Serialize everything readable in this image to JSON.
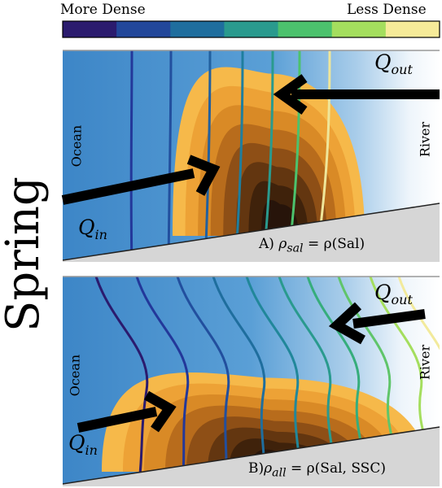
{
  "colorbar": {
    "left_label": "More Dense",
    "right_label": "Less Dense",
    "colors": [
      "#2b1b6e",
      "#22479a",
      "#1f6e9e",
      "#2a9a8e",
      "#4cc26d",
      "#a4de5e",
      "#f6eb99"
    ]
  },
  "season_label": "Spring",
  "panels": [
    {
      "id": "A",
      "ocean_label": "Ocean",
      "river_label": "River",
      "q_in": {
        "main": "Q",
        "sub": "in"
      },
      "q_out": {
        "main": "Q",
        "sub": "out"
      },
      "equation": {
        "prefix": "A)",
        "lhs": "ρ",
        "lhs_sub": "sal",
        "rhs": "= ρ(Sal)"
      }
    },
    {
      "id": "B",
      "ocean_label": "Ocean",
      "river_label": "River",
      "q_in": {
        "main": "Q",
        "sub": "in"
      },
      "q_out": {
        "main": "Q",
        "sub": "out"
      },
      "equation": {
        "prefix": "B)",
        "lhs": "ρ",
        "lhs_sub": "all",
        "rhs": "= ρ(Sal, SSC)"
      }
    }
  ],
  "turbidity_colors": [
    "#f6b94a",
    "#eda236",
    "#d98a26",
    "#b86c1c",
    "#8e4f16",
    "#633610",
    "#3f220b",
    "#27140a"
  ],
  "ocean_colors": {
    "deep": "#3e87c8",
    "light": "#eaf3fb"
  },
  "bed_color": "#d6d6d6"
}
